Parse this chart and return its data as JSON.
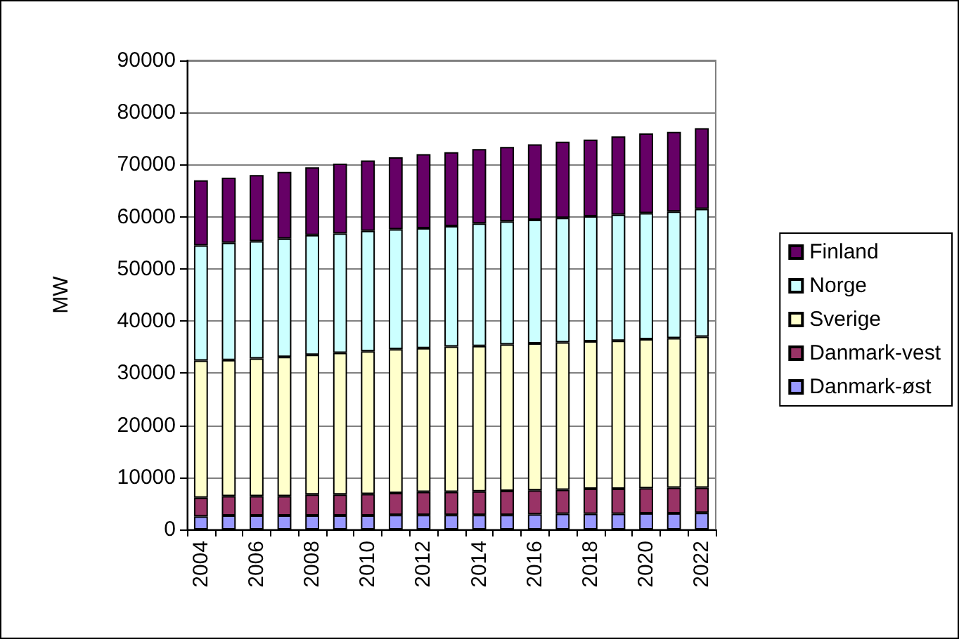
{
  "chart_data": {
    "type": "bar",
    "stacked": true,
    "ylabel": "MW",
    "categories": [
      "2004",
      null,
      "2006",
      null,
      "2008",
      null,
      "2010",
      null,
      "2012",
      null,
      "2014",
      null,
      "2016",
      null,
      "2018",
      null,
      "2020",
      null,
      "2022"
    ],
    "series": [
      {
        "name": "Danmark-øst",
        "color": "#9999ff",
        "values": [
          2500,
          2700,
          2700,
          2700,
          2700,
          2700,
          2700,
          2800,
          2800,
          2800,
          2800,
          2800,
          2900,
          3000,
          3000,
          3000,
          3100,
          3100,
          3200
        ]
      },
      {
        "name": "Danmark-vest",
        "color": "#993366",
        "values": [
          3600,
          3700,
          3700,
          3700,
          4000,
          4000,
          4100,
          4200,
          4400,
          4400,
          4500,
          4600,
          4600,
          4600,
          4800,
          4800,
          4800,
          4900,
          4800
        ]
      },
      {
        "name": "Sverige",
        "color": "#ffffcc",
        "values": [
          26300,
          26100,
          26400,
          26700,
          26800,
          27200,
          27400,
          27600,
          27600,
          27900,
          27900,
          28100,
          28200,
          28300,
          28300,
          28400,
          28600,
          28700,
          29000
        ]
      },
      {
        "name": "Norge",
        "color": "#ccffff",
        "values": [
          22100,
          22500,
          22500,
          22700,
          23000,
          22900,
          23100,
          23000,
          23000,
          23100,
          23500,
          23600,
          23700,
          23900,
          24000,
          24200,
          24200,
          24300,
          24500
        ]
      },
      {
        "name": "Finland",
        "color": "#660066",
        "values": [
          12500,
          12500,
          12700,
          12800,
          13000,
          13400,
          13500,
          13800,
          14200,
          14200,
          14300,
          14300,
          14500,
          14600,
          14700,
          15000,
          15300,
          15300,
          15500
        ]
      }
    ],
    "ylim": [
      0,
      90000
    ],
    "yticks": [
      0,
      10000,
      20000,
      30000,
      40000,
      50000,
      60000,
      70000,
      80000,
      90000
    ],
    "grid": "y",
    "legend": "right"
  }
}
